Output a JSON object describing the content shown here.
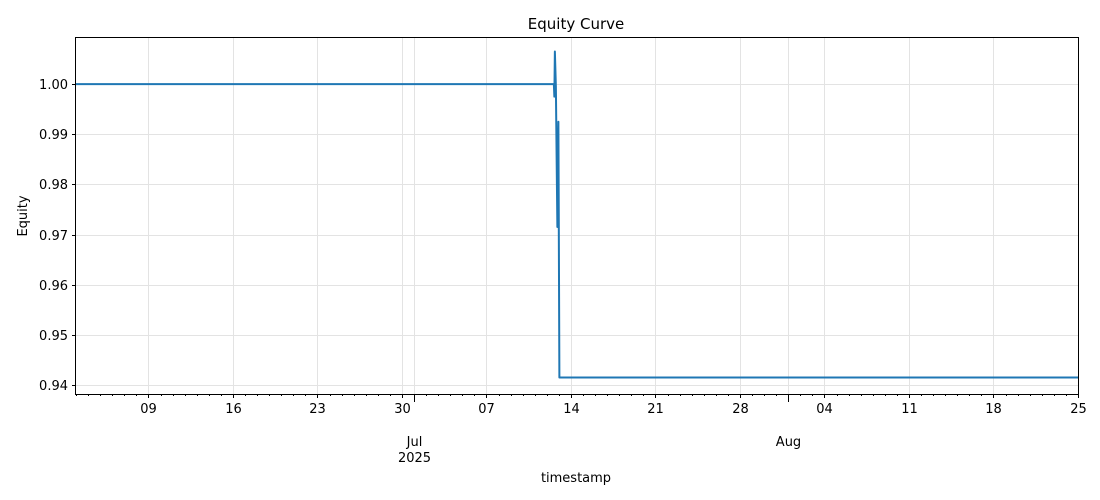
{
  "chart_data": {
    "type": "line",
    "title": "Equity Curve",
    "xlabel": "timestamp",
    "ylabel": "Equity",
    "x_axis": "date",
    "xlim": [
      "2025-06-03",
      "2025-08-25"
    ],
    "ylim": [
      0.9382,
      1.0092
    ],
    "grid": true,
    "line_color": "#1f77b4",
    "yticks": [
      {
        "value": 0.94,
        "label": "0.94"
      },
      {
        "value": 0.95,
        "label": "0.95"
      },
      {
        "value": 0.96,
        "label": "0.96"
      },
      {
        "value": 0.97,
        "label": "0.97"
      },
      {
        "value": 0.98,
        "label": "0.98"
      },
      {
        "value": 0.99,
        "label": "0.99"
      },
      {
        "value": 1.0,
        "label": "1.00"
      }
    ],
    "xticks_major": [
      {
        "date": "2025-07-01",
        "label": "Jul\n2025"
      },
      {
        "date": "2025-08-01",
        "label": "Aug"
      }
    ],
    "xticks_minor": [
      {
        "date": "2025-06-09",
        "label": "09"
      },
      {
        "date": "2025-06-16",
        "label": "16"
      },
      {
        "date": "2025-06-23",
        "label": "23"
      },
      {
        "date": "2025-06-30",
        "label": "30"
      },
      {
        "date": "2025-07-07",
        "label": "07"
      },
      {
        "date": "2025-07-14",
        "label": "14"
      },
      {
        "date": "2025-07-21",
        "label": "21"
      },
      {
        "date": "2025-07-28",
        "label": "28"
      },
      {
        "date": "2025-08-04",
        "label": "04"
      },
      {
        "date": "2025-08-11",
        "label": "11"
      },
      {
        "date": "2025-08-18",
        "label": "18"
      },
      {
        "date": "2025-08-25",
        "label": "25"
      }
    ],
    "series": [
      {
        "points": [
          {
            "x": "2025-06-03T00:00",
            "y": 1.0
          },
          {
            "x": "2025-07-12T14:00",
            "y": 1.0
          },
          {
            "x": "2025-07-12T15:00",
            "y": 0.9975
          },
          {
            "x": "2025-07-12T16:00",
            "y": 1.0065
          },
          {
            "x": "2025-07-12T18:00",
            "y": 0.9995
          },
          {
            "x": "2025-07-12T21:00",
            "y": 0.9715
          },
          {
            "x": "2025-07-12T23:00",
            "y": 0.9925
          },
          {
            "x": "2025-07-13T01:00",
            "y": 0.9415
          },
          {
            "x": "2025-08-25T00:00",
            "y": 0.9415
          }
        ]
      }
    ]
  }
}
